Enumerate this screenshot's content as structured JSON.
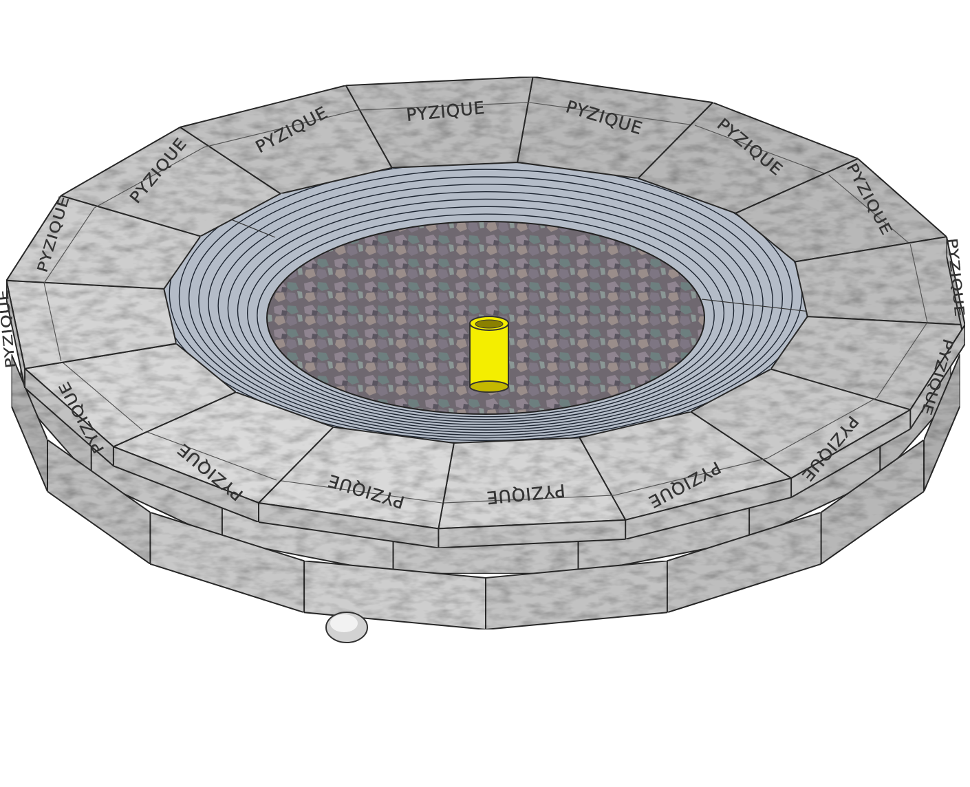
{
  "brand_label": "PYZIQUE",
  "cap_labels": [
    "PYZIQUE",
    "PYZIQUE",
    "PYZIQUE",
    "PYZIQUE",
    "PYZIQUE",
    "PYZIQUE",
    "PYZIQUE",
    "PYZIQUE",
    "PYZIQUE",
    "PYZIQUE",
    "PYZIQUE",
    "PYZIQUE",
    "PYZIQUE",
    "PYZIQUE",
    "PYZIQUE",
    "PYZIQUE"
  ],
  "colors": {
    "block_face": "#d8d8d8",
    "block_side": "#c2c2c2",
    "block_edge": "#2a2a2a",
    "steel_ring": "#b4bcc8",
    "steel_ring_lines": "#1c2430",
    "gravel_base": "#7a7278",
    "gas_pipe": "#f4ee00",
    "gas_pipe_dark": "#c4b800",
    "label_text": "#333333"
  },
  "icons": {
    "gas_pipe": "yellow-gas-pipe-icon",
    "gas_port": "gas-inlet-hole-icon"
  }
}
